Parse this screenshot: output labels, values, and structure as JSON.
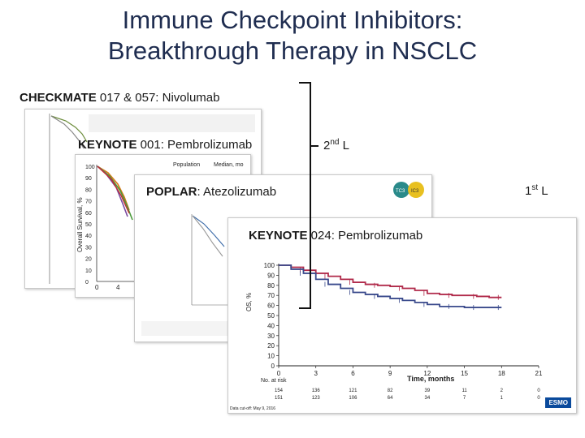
{
  "slide": {
    "title_line1": "Immune Checkpoint Inhibitors:",
    "title_line2": "Breakthrough Therapy in NSCLC"
  },
  "trials": {
    "checkmate": {
      "name": "CHECKMATE",
      "rest": " 017 & 057: Nivolumab"
    },
    "keynote001": {
      "name": "KEYNOTE",
      "rest": " 001: Pembrolizumab"
    },
    "poplar": {
      "name": "POPLAR",
      "rest": ": Atezolizumab"
    },
    "keynote024": {
      "name": "KEYNOTE",
      "rest": " 024: Pembrolizumab"
    }
  },
  "line_labels": {
    "second": {
      "num": "2",
      "sup": "nd",
      "suffix": " L"
    },
    "first": {
      "num": "1",
      "sup": "st",
      "suffix": " L"
    }
  },
  "keynote001_figure": {
    "ylabel": "Overall Survival, %",
    "yticks": [
      "100",
      "90",
      "80",
      "70",
      "60",
      "50",
      "40",
      "30",
      "20",
      "10",
      "0"
    ],
    "xticks": [
      "0",
      "4"
    ],
    "col_header": "Population",
    "col_header2": "Median, mo"
  },
  "poplar_figure": {
    "badges": [
      "TC3",
      "IC3"
    ]
  },
  "keynote024_figure": {
    "ylabel": "OS, %",
    "yticks": [
      "100",
      "90",
      "80",
      "70",
      "60",
      "50",
      "40",
      "30",
      "20",
      "10",
      "0"
    ],
    "xticks": [
      "0",
      "3",
      "6",
      "9",
      "12",
      "15",
      "18",
      "21"
    ],
    "xlabel": "Time, months",
    "risk_label": "No. at risk",
    "risk_row1": [
      "154",
      "136",
      "121",
      "82",
      "39",
      "11",
      "2",
      "0"
    ],
    "risk_row2": [
      "151",
      "123",
      "106",
      "64",
      "34",
      "7",
      "1",
      "0"
    ],
    "footer": "Data cut-off: May 9, 2016",
    "colors": {
      "pembro": "#b02a4a",
      "chemo": "#3a4a8c"
    }
  },
  "chart_data": {
    "type": "line",
    "xlabel": "Time, months",
    "ylabel": "OS, %",
    "xlim": [
      0,
      21
    ],
    "ylim": [
      0,
      100
    ],
    "series": [
      {
        "x": [
          0,
          1,
          2,
          3,
          4,
          5,
          6,
          7,
          8,
          9,
          10,
          11,
          12,
          13,
          14,
          15,
          16,
          17,
          18
        ],
        "values": [
          100,
          98,
          95,
          92,
          89,
          86,
          83,
          81,
          80,
          79,
          77,
          75,
          72,
          71,
          70,
          70,
          69,
          68,
          68
        ]
      },
      {
        "x": [
          0,
          1,
          2,
          3,
          4,
          5,
          6,
          7,
          8,
          9,
          10,
          11,
          12,
          13,
          14,
          15,
          16,
          17,
          18
        ],
        "values": [
          100,
          96,
          92,
          86,
          81,
          77,
          73,
          71,
          69,
          67,
          65,
          63,
          61,
          59,
          59,
          58,
          58,
          58,
          58
        ]
      }
    ]
  },
  "esmo": {
    "label": "ESMO"
  }
}
